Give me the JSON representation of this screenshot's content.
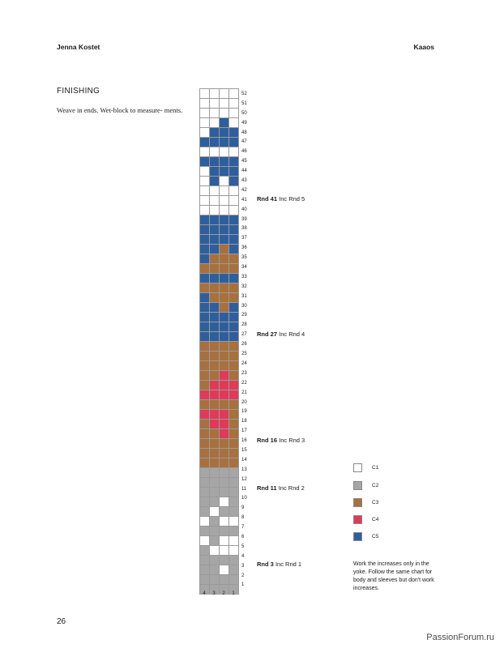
{
  "header": {
    "author": "Jenna Kostet",
    "pattern": "Kaaos"
  },
  "section": {
    "title": "FINISHING",
    "body": "Weave in ends. Wet-block to measure- ments."
  },
  "chart": {
    "rows_top_to_bottom": [
      "1111",
      "1111",
      "1111",
      "1151",
      "1555",
      "5555",
      "1111",
      "5555",
      "1555",
      "1515",
      "1111",
      "1111",
      "1111",
      "5555",
      "5555",
      "5555",
      "5535",
      "5333",
      "3333",
      "5555",
      "3333",
      "5333",
      "5535",
      "5555",
      "5555",
      "5555",
      "3333",
      "3333",
      "3333",
      "3343",
      "3444",
      "4444",
      "3333",
      "4443",
      "3443",
      "3343",
      "3333",
      "3333",
      "3333",
      "2222",
      "2222",
      "2222",
      "2212",
      "2122",
      "1211",
      "2222",
      "1211",
      "2111",
      "2222",
      "2212",
      "2222",
      "2222"
    ],
    "row_numbers": [
      "52",
      "51",
      "50",
      "49",
      "48",
      "47",
      "46",
      "45",
      "44",
      "43",
      "42",
      "41",
      "40",
      "39",
      "38",
      "37",
      "36",
      "35",
      "34",
      "33",
      "32",
      "31",
      "30",
      "29",
      "28",
      "27",
      "26",
      "25",
      "24",
      "23",
      "22",
      "21",
      "20",
      "19",
      "18",
      "17",
      "16",
      "15",
      "14",
      "13",
      "12",
      "11",
      "10",
      "9",
      "8",
      "7",
      "6",
      "5",
      "4",
      "3",
      "2",
      "1"
    ],
    "column_numbers": [
      "4",
      "3",
      "2",
      "1"
    ]
  },
  "annotations": [
    {
      "rnd": "Rnd 41",
      "text": "Inc Rnd 5"
    },
    {
      "rnd": "Rnd 27",
      "text": "Inc Rnd 4"
    },
    {
      "rnd": "Rnd 16",
      "text": "Inc Rnd 3"
    },
    {
      "rnd": "Rnd 11",
      "text": "Inc Rnd 2"
    },
    {
      "rnd": "Rnd 3",
      "text": "Inc Rnd 1"
    }
  ],
  "legend": [
    {
      "label": "C1",
      "color": "#ffffff"
    },
    {
      "label": "C2",
      "color": "#a6a6a6"
    },
    {
      "label": "C3",
      "color": "#a8703c"
    },
    {
      "label": "C4",
      "color": "#e03a58"
    },
    {
      "label": "C5",
      "color": "#2d5f9e"
    }
  ],
  "note": "Work the increases only in the yoke. Follow the same chart for body and sleeves but don't work increases.",
  "page_number": "26",
  "watermark": "PassionForum.ru"
}
